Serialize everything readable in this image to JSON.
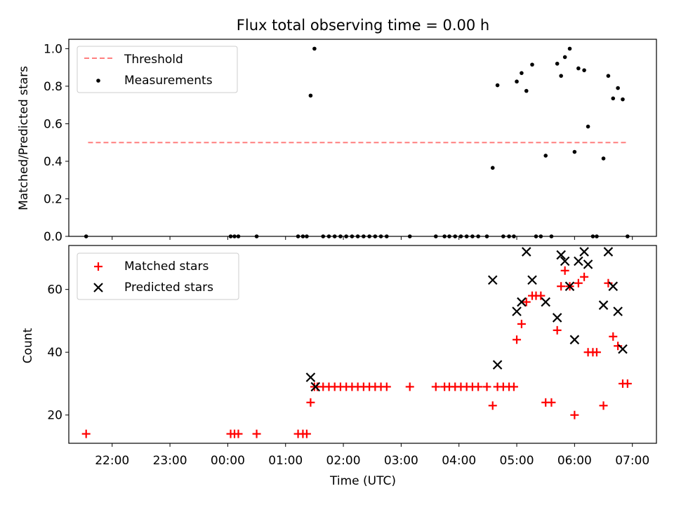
{
  "title": "Flux total observing time = 0.00 h",
  "chart_data": [
    {
      "type": "scatter",
      "ylabel": "Matched/Predicted stars",
      "ylim": [
        0,
        1.05
      ],
      "yticks": [
        0.0,
        0.2,
        0.4,
        0.6,
        0.8,
        1.0
      ],
      "ytick_labels": [
        "0.0",
        "0.2",
        "0.4",
        "0.6",
        "0.8",
        "1.0"
      ],
      "legend": {
        "placement": "upper-left",
        "entries": [
          "Threshold",
          "Measurements"
        ]
      },
      "threshold": {
        "name": "Threshold",
        "value": 0.5,
        "x_start": "21:35",
        "x_end": "06:55",
        "color": "#ff7f7f"
      },
      "series": [
        {
          "name": "Measurements",
          "color": "#000000",
          "points": [
            [
              "21:33",
              0.0
            ],
            [
              "00:03",
              0.0
            ],
            [
              "00:07",
              0.0
            ],
            [
              "00:11",
              0.0
            ],
            [
              "00:30",
              0.0
            ],
            [
              "01:13",
              0.0
            ],
            [
              "01:18",
              0.0
            ],
            [
              "01:22",
              0.0
            ],
            [
              "01:26",
              0.75
            ],
            [
              "01:30",
              1.0
            ],
            [
              "01:39",
              0.0
            ],
            [
              "01:45",
              0.0
            ],
            [
              "01:51",
              0.0
            ],
            [
              "01:57",
              0.0
            ],
            [
              "02:03",
              0.0
            ],
            [
              "02:09",
              0.0
            ],
            [
              "02:15",
              0.0
            ],
            [
              "02:21",
              0.0
            ],
            [
              "02:27",
              0.0
            ],
            [
              "02:33",
              0.0
            ],
            [
              "02:39",
              0.0
            ],
            [
              "02:45",
              0.0
            ],
            [
              "03:09",
              0.0
            ],
            [
              "03:36",
              0.0
            ],
            [
              "03:45",
              0.0
            ],
            [
              "03:50",
              0.0
            ],
            [
              "03:56",
              0.0
            ],
            [
              "04:02",
              0.0
            ],
            [
              "04:08",
              0.0
            ],
            [
              "04:14",
              0.0
            ],
            [
              "04:20",
              0.0
            ],
            [
              "04:29",
              0.0
            ],
            [
              "04:35",
              0.365
            ],
            [
              "04:40",
              0.805
            ],
            [
              "04:46",
              0.0
            ],
            [
              "04:52",
              0.0
            ],
            [
              "04:57",
              0.0
            ],
            [
              "05:00",
              0.825
            ],
            [
              "05:05",
              0.87
            ],
            [
              "05:10",
              0.775
            ],
            [
              "05:16",
              0.915
            ],
            [
              "05:20",
              0.0
            ],
            [
              "05:25",
              0.0
            ],
            [
              "05:30",
              0.43
            ],
            [
              "05:36",
              0.0
            ],
            [
              "05:42",
              0.92
            ],
            [
              "05:46",
              0.855
            ],
            [
              "05:50",
              0.955
            ],
            [
              "05:55",
              1.0
            ],
            [
              "06:00",
              0.45
            ],
            [
              "06:04",
              0.895
            ],
            [
              "06:10",
              0.885
            ],
            [
              "06:14",
              0.585
            ],
            [
              "06:19",
              0.0
            ],
            [
              "06:23",
              0.0
            ],
            [
              "06:30",
              0.415
            ],
            [
              "06:35",
              0.855
            ],
            [
              "06:40",
              0.735
            ],
            [
              "06:45",
              0.79
            ],
            [
              "06:50",
              0.73
            ],
            [
              "06:55",
              0.0
            ]
          ]
        }
      ]
    },
    {
      "type": "scatter",
      "xlabel": "Time (UTC)",
      "ylabel": "Count",
      "ylim": [
        11,
        74
      ],
      "yticks": [
        20,
        40,
        60
      ],
      "ytick_labels": [
        "20",
        "40",
        "60"
      ],
      "xticks": [
        "22:00",
        "23:00",
        "00:00",
        "01:00",
        "02:00",
        "03:00",
        "04:00",
        "05:00",
        "06:00",
        "07:00"
      ],
      "xlim": [
        "21:15",
        "07:25"
      ],
      "legend": {
        "placement": "upper-left",
        "entries": [
          "Matched stars",
          "Predicted stars"
        ]
      },
      "series": [
        {
          "name": "Matched stars",
          "marker": "+",
          "color": "#ff0000",
          "points": [
            [
              "21:33",
              14
            ],
            [
              "00:03",
              14
            ],
            [
              "00:07",
              14
            ],
            [
              "00:11",
              14
            ],
            [
              "00:30",
              14
            ],
            [
              "01:13",
              14
            ],
            [
              "01:18",
              14
            ],
            [
              "01:22",
              14
            ],
            [
              "01:26",
              24
            ],
            [
              "01:30",
              29
            ],
            [
              "01:33",
              29
            ],
            [
              "01:39",
              29
            ],
            [
              "01:45",
              29
            ],
            [
              "01:51",
              29
            ],
            [
              "01:57",
              29
            ],
            [
              "02:03",
              29
            ],
            [
              "02:09",
              29
            ],
            [
              "02:15",
              29
            ],
            [
              "02:21",
              29
            ],
            [
              "02:27",
              29
            ],
            [
              "02:33",
              29
            ],
            [
              "02:39",
              29
            ],
            [
              "02:45",
              29
            ],
            [
              "03:09",
              29
            ],
            [
              "03:36",
              29
            ],
            [
              "03:45",
              29
            ],
            [
              "03:50",
              29
            ],
            [
              "03:56",
              29
            ],
            [
              "04:02",
              29
            ],
            [
              "04:08",
              29
            ],
            [
              "04:14",
              29
            ],
            [
              "04:20",
              29
            ],
            [
              "04:29",
              29
            ],
            [
              "04:35",
              23
            ],
            [
              "04:40",
              29
            ],
            [
              "04:46",
              29
            ],
            [
              "04:52",
              29
            ],
            [
              "04:57",
              29
            ],
            [
              "05:00",
              44
            ],
            [
              "05:05",
              49
            ],
            [
              "05:10",
              56
            ],
            [
              "05:16",
              58
            ],
            [
              "05:20",
              58
            ],
            [
              "05:25",
              58
            ],
            [
              "05:30",
              24
            ],
            [
              "05:36",
              24
            ],
            [
              "05:42",
              47
            ],
            [
              "05:46",
              61
            ],
            [
              "05:50",
              66
            ],
            [
              "05:55",
              61
            ],
            [
              "06:00",
              20
            ],
            [
              "06:04",
              62
            ],
            [
              "06:10",
              64
            ],
            [
              "06:14",
              40
            ],
            [
              "06:19",
              40
            ],
            [
              "06:23",
              40
            ],
            [
              "06:30",
              23
            ],
            [
              "06:35",
              62
            ],
            [
              "06:40",
              45
            ],
            [
              "06:45",
              42
            ],
            [
              "06:50",
              30
            ],
            [
              "06:55",
              30
            ]
          ]
        },
        {
          "name": "Predicted stars",
          "marker": "x",
          "color": "#000000",
          "points": [
            [
              "01:26",
              32
            ],
            [
              "01:31",
              29
            ],
            [
              "04:35",
              63
            ],
            [
              "04:40",
              36
            ],
            [
              "05:00",
              53
            ],
            [
              "05:05",
              56
            ],
            [
              "05:10",
              72
            ],
            [
              "05:16",
              63
            ],
            [
              "05:30",
              56
            ],
            [
              "05:42",
              51
            ],
            [
              "05:46",
              71
            ],
            [
              "05:50",
              69
            ],
            [
              "05:55",
              61
            ],
            [
              "06:00",
              44
            ],
            [
              "06:04",
              69
            ],
            [
              "06:10",
              72
            ],
            [
              "06:14",
              68
            ],
            [
              "06:30",
              55
            ],
            [
              "06:35",
              72
            ],
            [
              "06:40",
              61
            ],
            [
              "06:45",
              53
            ],
            [
              "06:50",
              41
            ]
          ]
        }
      ]
    }
  ]
}
